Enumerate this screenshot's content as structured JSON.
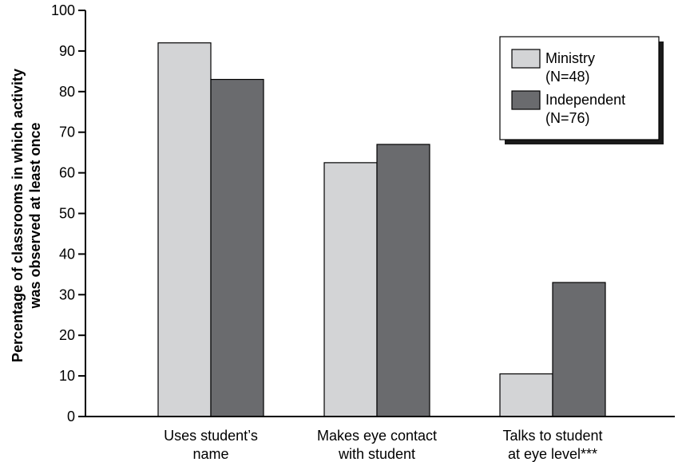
{
  "chart_data": {
    "type": "bar",
    "title": "",
    "xlabel": "",
    "ylabel": [
      "Percentage of classrooms in which activity",
      "was observed at least once"
    ],
    "ylim": [
      0,
      100
    ],
    "yticks": [
      "0",
      "10",
      "20",
      "30",
      "40",
      "50",
      "60",
      "70",
      "80",
      "90",
      "100"
    ],
    "categories": [
      [
        "Uses student’s",
        "name"
      ],
      [
        "Makes eye contact",
        "with student"
      ],
      [
        "Talks to student",
        "at eye level***"
      ]
    ],
    "series": [
      {
        "name": [
          "Ministry",
          "(N=48)"
        ],
        "color": "#d3d4d6",
        "values": [
          92,
          62.5,
          10.5
        ]
      },
      {
        "name": [
          "Independent",
          "(N=76)"
        ],
        "color": "#6a6b6e",
        "values": [
          83,
          67,
          33
        ]
      }
    ],
    "legend_position": "top-right",
    "grid": false
  }
}
